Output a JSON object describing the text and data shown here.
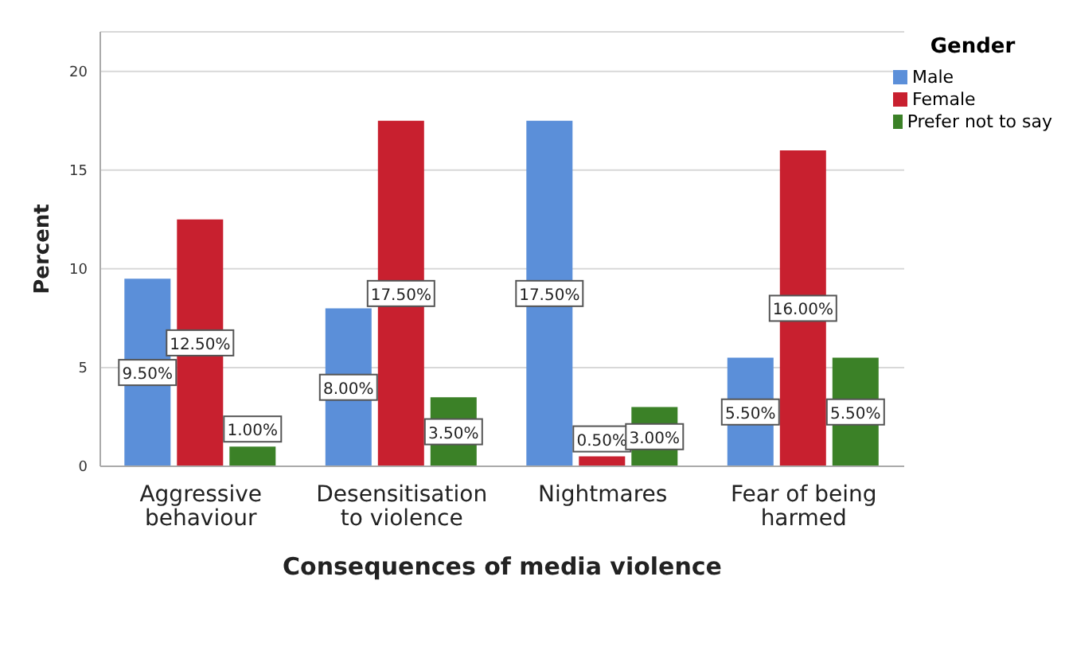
{
  "chart_data": {
    "type": "bar",
    "xlabel": "Consequences of media violence",
    "ylabel": "Percent",
    "legend_title": "Gender",
    "legend": "top right",
    "grid": "y",
    "categories": [
      "Aggressive behaviour",
      "Desensitisation to violence",
      "Nightmares",
      "Fear of being harmed"
    ],
    "ylim": [
      0,
      22
    ],
    "yticks": [
      0,
      5,
      10,
      15,
      20
    ],
    "series": [
      {
        "name": "Male",
        "color": "#5b8fd9",
        "values": [
          9.5,
          8.0,
          17.5,
          5.5
        ],
        "value_labels": [
          "9.50%",
          "8.00%",
          "17.50%",
          "5.50%"
        ]
      },
      {
        "name": "Female",
        "color": "#c8202f",
        "values": [
          12.5,
          17.5,
          0.5,
          16.0
        ],
        "value_labels": [
          "12.50%",
          "17.50%",
          "0.50%",
          "16.00%"
        ]
      },
      {
        "name": "Prefer not to say",
        "color": "#3b8127",
        "values": [
          1.0,
          3.5,
          3.0,
          5.5
        ],
        "value_labels": [
          "1.00%",
          "3.50%",
          "3.00%",
          "5.50%"
        ]
      }
    ]
  }
}
